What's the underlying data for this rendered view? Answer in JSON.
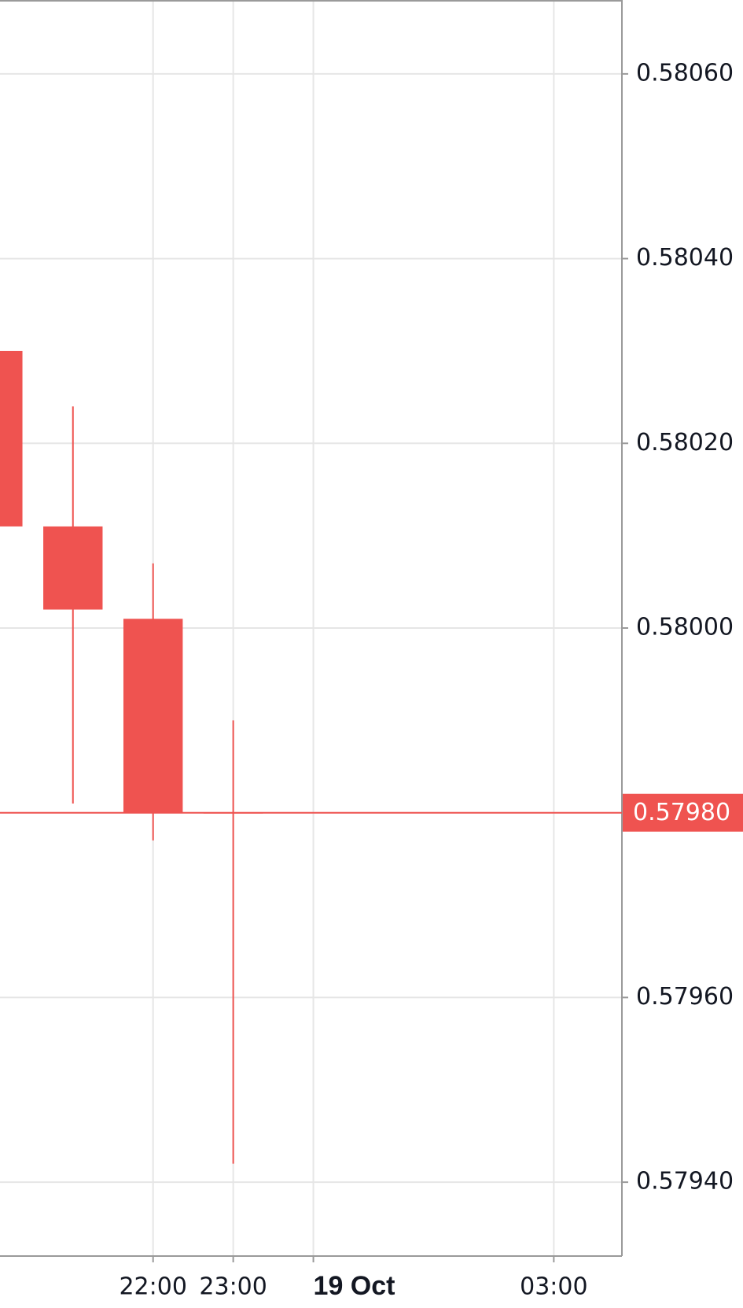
{
  "chart_data": {
    "type": "candlestick",
    "color": "#ef5350",
    "x": [
      20,
      21,
      22,
      23
    ],
    "open": [
      0.5803,
      0.58011,
      0.58001,
      0.5798
    ],
    "high": [
      0.5803,
      0.58024,
      0.58007,
      0.5799
    ],
    "low": [
      0.58011,
      0.57981,
      0.57977,
      0.57942
    ],
    "close": [
      0.58011,
      0.58002,
      0.5798,
      0.5798
    ],
    "xlim": [
      20.09,
      27.85
    ],
    "xticks": [
      {
        "value": 22,
        "label": "22:00"
      },
      {
        "value": 23,
        "label": "23:00"
      },
      {
        "value": 24,
        "label": "19 Oct"
      },
      {
        "value": 27,
        "label": "03:00"
      }
    ],
    "ylim": [
      0.57932,
      0.58068
    ],
    "yticks": [
      {
        "value": 0.5794,
        "label": "0.57940"
      },
      {
        "value": 0.5796,
        "label": "0.57960"
      },
      {
        "value": 0.5798,
        "label": "0.57980"
      },
      {
        "value": 0.58,
        "label": "0.58000"
      },
      {
        "value": 0.5802,
        "label": "0.58020"
      },
      {
        "value": 0.5804,
        "label": "0.58040"
      },
      {
        "value": 0.5806,
        "label": "0.58060"
      }
    ],
    "last_price": {
      "value": 0.5798,
      "label": "0.57980"
    },
    "grid": true
  }
}
